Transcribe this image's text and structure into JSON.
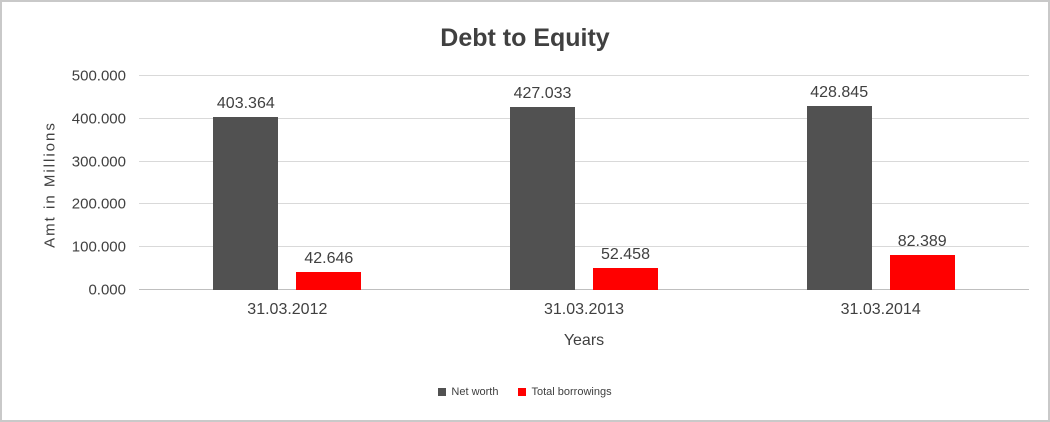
{
  "chart_data": {
    "type": "bar",
    "title": "Debt to Equity",
    "xlabel": "Years",
    "ylabel": "Amt in Millions",
    "categories": [
      "31.03.2012",
      "31.03.2013",
      "31.03.2014"
    ],
    "series": [
      {
        "name": "Net worth",
        "color": "#515151",
        "values": [
          403.364,
          427.033,
          428.845
        ],
        "value_labels": [
          "403.364",
          "427.033",
          "428.845"
        ]
      },
      {
        "name": "Total borrowings",
        "color": "#FF0000",
        "values": [
          42.646,
          52.458,
          82.389
        ],
        "value_labels": [
          "42.646",
          "52.458",
          "82.389"
        ]
      }
    ],
    "ylim": [
      0,
      500
    ],
    "yticks": [
      {
        "value": 0,
        "label": "0.000"
      },
      {
        "value": 100,
        "label": "100.000"
      },
      {
        "value": 200,
        "label": "200.000"
      },
      {
        "value": 300,
        "label": "300.000"
      },
      {
        "value": 400,
        "label": "400.000"
      },
      {
        "value": 500,
        "label": "500.000"
      }
    ],
    "grid": true,
    "legend_position": "bottom"
  },
  "colors": {
    "text": "#404040",
    "gridline": "#D9D9D9",
    "zero_line": "#BFBFBF",
    "frame_border": "#C9C9C9",
    "background": "#FFFFFF"
  }
}
